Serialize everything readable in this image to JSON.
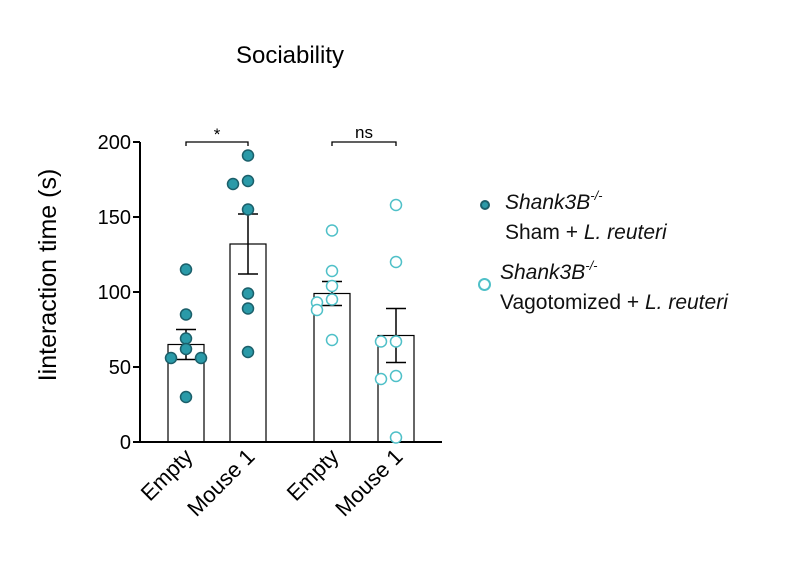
{
  "chart_data": {
    "type": "bar",
    "title": "Sociability",
    "ylabel": "Iinteraction time (s)",
    "xlabel": "",
    "ylim": [
      0,
      200
    ],
    "yticks": [
      0,
      50,
      100,
      150,
      200
    ],
    "ytick_labels": [
      "0",
      "50",
      "100",
      "150",
      "200"
    ],
    "categories": [
      "Empty",
      "Mouse 1",
      "Empty",
      "Mouse 1"
    ],
    "groups": [
      {
        "name": "Sham + L. reuteri",
        "marker": "filled",
        "color": "#2a9aa8",
        "categories": [
          "Empty",
          "Mouse 1"
        ],
        "means": [
          65,
          132
        ],
        "sem": [
          10,
          20
        ],
        "points": [
          [
            115,
            85,
            69,
            62,
            56,
            56,
            30
          ],
          [
            191,
            174,
            172,
            155,
            99,
            89,
            60
          ]
        ],
        "significance": "*"
      },
      {
        "name": "Vagotomized + L. reuteri",
        "marker": "open",
        "color": "#4fc0c8",
        "categories": [
          "Empty",
          "Mouse 1"
        ],
        "means": [
          99,
          71
        ],
        "sem": [
          8,
          18
        ],
        "points": [
          [
            141,
            114,
            104,
            95,
            93,
            88,
            68
          ],
          [
            158,
            120,
            67,
            67,
            44,
            42,
            3
          ]
        ],
        "significance": "ns"
      }
    ],
    "legend": [
      {
        "genotype": "Shank3B",
        "superscript": "-/-",
        "prefix": "Sham",
        "plus": "+",
        "bacterium": "L. reuteri",
        "marker": "filled"
      },
      {
        "genotype": "Shank3B",
        "superscript": "-/-",
        "prefix": "Vagotomized",
        "plus": "+",
        "bacterium": "L. reuteri",
        "marker": "open"
      }
    ],
    "legend_position": "right"
  }
}
